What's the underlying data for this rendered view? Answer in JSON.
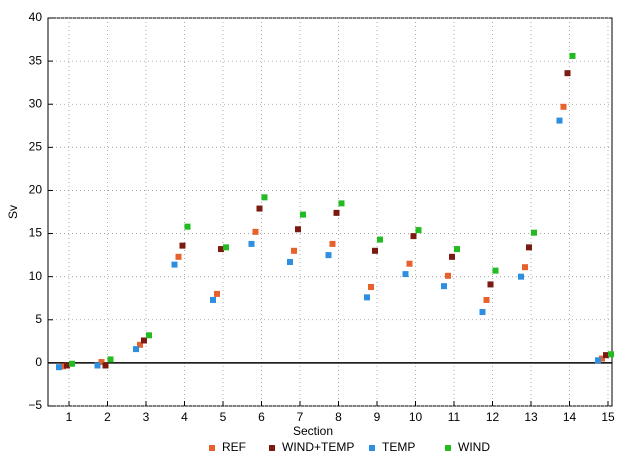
{
  "chart_data": {
    "type": "scatter",
    "xlabel": "Section",
    "ylabel": "Sv",
    "categories": [
      "1",
      "2",
      "3",
      "4",
      "5",
      "6",
      "7",
      "8",
      "9",
      "10",
      "11",
      "12",
      "13",
      "14",
      "15"
    ],
    "series": [
      {
        "name": "REF",
        "color": "#e8612c",
        "values": [
          -0.4,
          0.1,
          2.1,
          12.3,
          8.0,
          15.2,
          13.0,
          13.8,
          8.8,
          11.5,
          10.1,
          7.3,
          11.1,
          29.7,
          0.5
        ]
      },
      {
        "name": "WIND+TEMP",
        "color": "#7b1a10",
        "values": [
          -0.3,
          -0.3,
          2.6,
          13.6,
          13.2,
          17.9,
          15.5,
          17.4,
          13.0,
          14.7,
          12.3,
          9.1,
          13.4,
          33.6,
          0.9
        ]
      },
      {
        "name": "TEMP",
        "color": "#2e8fe0",
        "values": [
          -0.5,
          -0.3,
          1.6,
          11.4,
          7.3,
          13.8,
          11.7,
          12.5,
          7.6,
          10.3,
          8.9,
          5.9,
          10.0,
          28.1,
          0.3
        ]
      },
      {
        "name": "WIND",
        "color": "#22bb22",
        "values": [
          -0.1,
          0.4,
          3.2,
          15.8,
          13.4,
          19.2,
          17.2,
          18.5,
          14.3,
          15.4,
          13.2,
          10.7,
          15.1,
          35.6,
          1.0
        ]
      }
    ],
    "ylim": [
      -5,
      40
    ],
    "yticks": [
      {
        "value": -5,
        "label": "−5"
      },
      0,
      5,
      10,
      15,
      20,
      25,
      30,
      35,
      40
    ],
    "grid": true,
    "legend": "bottom"
  }
}
